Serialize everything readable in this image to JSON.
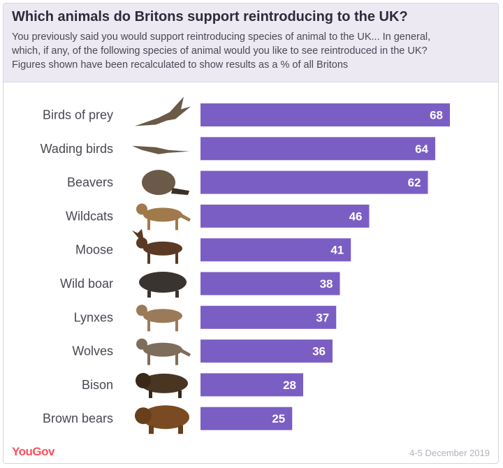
{
  "header": {
    "title": "Which animals do Britons support reintroducing to the UK?",
    "subtitle_line1": "You previously said you would support reintroducing species of animal to the UK... In general,",
    "subtitle_line2": "which, if any, of the following species of animal would you like to see reintroduced in the UK?",
    "subtitle_line3": "Figures shown have been recalculated to show results as a % of all Britons"
  },
  "footer": {
    "brand": "YouGov",
    "date": "4-5 December 2019"
  },
  "colors": {
    "bar": "#7b5ec4",
    "bar_label": "#ffffff",
    "category_label": "#4a4651",
    "animal_silhouette": "#6b5a48"
  },
  "chart_data": {
    "type": "bar",
    "orientation": "horizontal",
    "title": "Which animals do Britons support reintroducing to the UK?",
    "categories": [
      "Birds of prey",
      "Wading birds",
      "Beavers",
      "Wildcats",
      "Moose",
      "Wild boar",
      "Lynxes",
      "Wolves",
      "Bison",
      "Brown bears"
    ],
    "values": [
      68,
      64,
      62,
      46,
      41,
      38,
      37,
      36,
      28,
      25
    ],
    "icons": [
      "bird-of-prey-icon",
      "wading-bird-icon",
      "beaver-icon",
      "wildcat-icon",
      "moose-icon",
      "wild-boar-icon",
      "lynx-icon",
      "wolf-icon",
      "bison-icon",
      "brown-bear-icon"
    ],
    "xlim": [
      0,
      72
    ],
    "grid": false,
    "legend": "none",
    "data_labels": "inside-end"
  }
}
